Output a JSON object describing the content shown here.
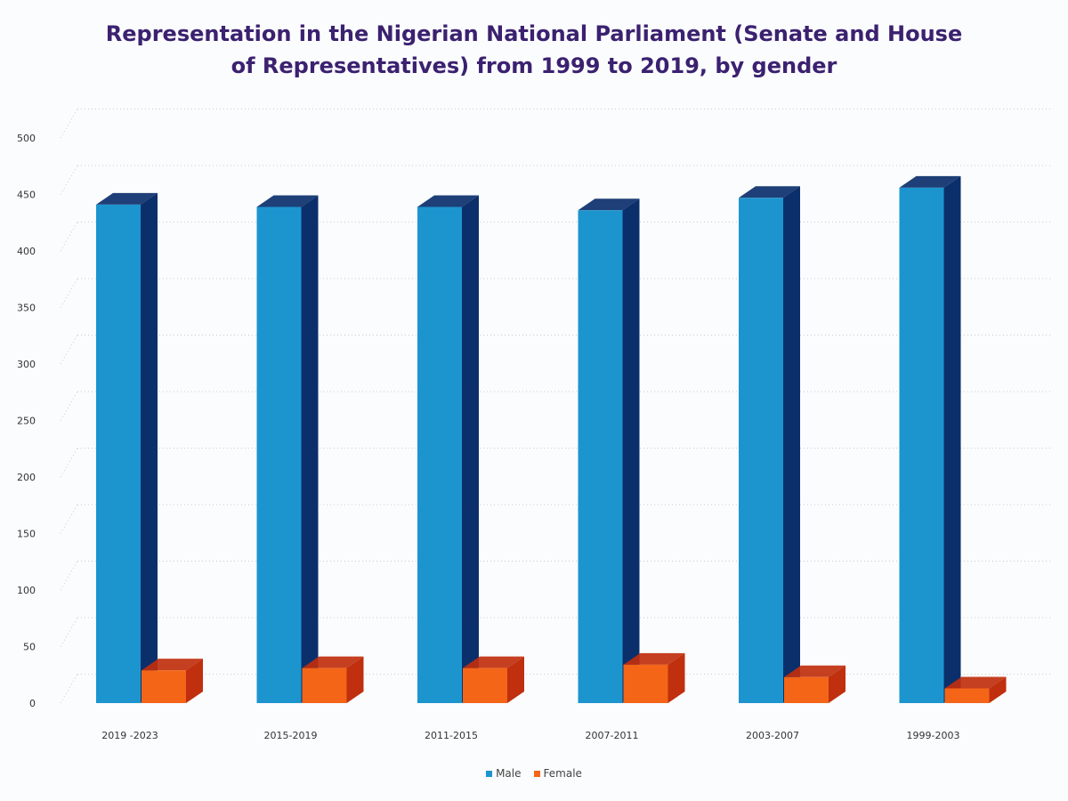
{
  "chart_data": {
    "type": "bar",
    "title_lines": [
      "Representation in the Nigerian National Parliament (Senate and House",
      "of Representatives) from 1999 to 2019, by gender"
    ],
    "categories": [
      "2019 -2023",
      "2015-2019",
      "2011-2015",
      "2007-2011",
      "2003-2007",
      "1999-2003"
    ],
    "series": [
      {
        "name": "Male",
        "values": [
          441,
          439,
          439,
          436,
          447,
          456
        ],
        "color": "#1c95cf",
        "side_color": "#0b2f6b"
      },
      {
        "name": "Female",
        "values": [
          29,
          31,
          31,
          34,
          23,
          13
        ],
        "color": "#f46518",
        "side_color": "#c02f0e"
      }
    ],
    "ylim": [
      0,
      500
    ],
    "yticks": [
      0,
      50,
      100,
      150,
      200,
      250,
      300,
      350,
      400,
      450,
      500
    ],
    "xlabel": "",
    "ylabel": "",
    "grid": true,
    "legend": "bottom-center"
  }
}
